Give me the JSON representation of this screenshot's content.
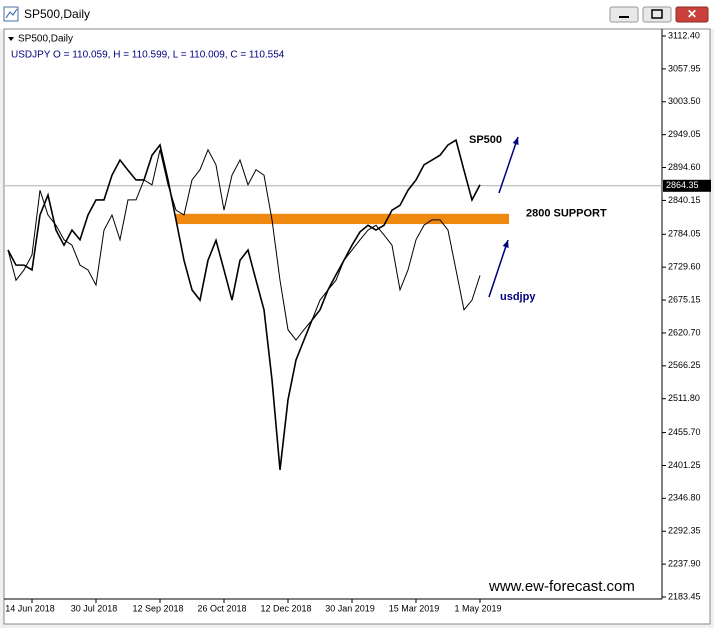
{
  "window_title": "SP500,Daily",
  "chart_data": {
    "type": "line",
    "title": "SP500,Daily",
    "subtitle": "USDJPY O = 110.059, H = 110.599, L = 110.009, C = 110.554",
    "categories": [
      null,
      null,
      null,
      "14 Jun 2018",
      null,
      null,
      null,
      null,
      null,
      null,
      null,
      "30 Jul 2018",
      null,
      null,
      null,
      null,
      null,
      null,
      null,
      "12 Sep 2018",
      null,
      null,
      null,
      null,
      null,
      null,
      null,
      "26 Oct 2018",
      null,
      null,
      null,
      null,
      null,
      null,
      null,
      "12 Dec 2018",
      null,
      null,
      null,
      null,
      null,
      null,
      null,
      "30 Jan 2019",
      null,
      null,
      null,
      null,
      null,
      null,
      null,
      "15 Mar 2019",
      null,
      null,
      null,
      null,
      null,
      null,
      null,
      "1 May 2019"
    ],
    "series": [
      {
        "name": "SP500",
        "color": "#000000",
        "values": [
          2758,
          2733,
          2733,
          2725,
          2816,
          2849,
          2791,
          2766,
          2791,
          2775,
          2816,
          2841,
          2841,
          2882,
          2907,
          2890,
          2874,
          2874,
          2915,
          2932,
          2874,
          2808,
          2741,
          2692,
          2675,
          2741,
          2774,
          2725,
          2675,
          2741,
          2758,
          2708,
          2659,
          2543,
          2394,
          2510,
          2576,
          2609,
          2642,
          2659,
          2692,
          2717,
          2741,
          2766,
          2788,
          2799,
          2791,
          2799,
          2824,
          2832,
          2857,
          2874,
          2899,
          2907,
          2915,
          2932,
          2940,
          2890,
          2841,
          2866
        ]
      },
      {
        "name": "usdjpy",
        "color": "#000000",
        "values": [
          2758,
          2708,
          2725,
          2750,
          2857,
          2816,
          2799,
          2775,
          2766,
          2733,
          2725,
          2700,
          2791,
          2816,
          2775,
          2841,
          2841,
          2874,
          2866,
          2924,
          2866,
          2824,
          2816,
          2874,
          2891,
          2924,
          2899,
          2824,
          2882,
          2907,
          2866,
          2891,
          2882,
          2808,
          2708,
          2626,
          2609,
          2626,
          2642,
          2675,
          2692,
          2708,
          2741,
          2758,
          2775,
          2791,
          2799,
          2783,
          2766,
          2692,
          2725,
          2775,
          2799,
          2808,
          2808,
          2791,
          2725,
          2659,
          2675,
          2716
        ]
      }
    ],
    "ylim": [
      2183.45,
      3112.4
    ],
    "yticks": [
      {
        "value": 3112.4,
        "label": "3112.40"
      },
      {
        "value": 3057.95,
        "label": "3057.95"
      },
      {
        "value": 3003.5,
        "label": "3003.50"
      },
      {
        "value": 2949.05,
        "label": "2949.05"
      },
      {
        "value": 2894.6,
        "label": "2894.60"
      },
      {
        "value": 2840.15,
        "label": "2840.15"
      },
      {
        "value": 2784.05,
        "label": "2784.05"
      },
      {
        "value": 2729.6,
        "label": "2729.60"
      },
      {
        "value": 2675.15,
        "label": "2675.15"
      },
      {
        "value": 2620.7,
        "label": "2620.70"
      },
      {
        "value": 2566.25,
        "label": "2566.25"
      },
      {
        "value": 2511.8,
        "label": "2511.80"
      },
      {
        "value": 2455.7,
        "label": "2455.70"
      },
      {
        "value": 2401.25,
        "label": "2401.25"
      },
      {
        "value": 2346.8,
        "label": "2346.80"
      },
      {
        "value": 2292.35,
        "label": "2292.35"
      },
      {
        "value": 2237.9,
        "label": "2237.90"
      },
      {
        "value": 2183.45,
        "label": "2183.45"
      }
    ],
    "current_price": 2864.35,
    "support_band": [
      2801,
      2818
    ],
    "support_label": "2800 SUPPORT",
    "watermark": "www.ew-forecast.com",
    "support_color": "#f0890f",
    "arrow_color": "#00007f"
  }
}
